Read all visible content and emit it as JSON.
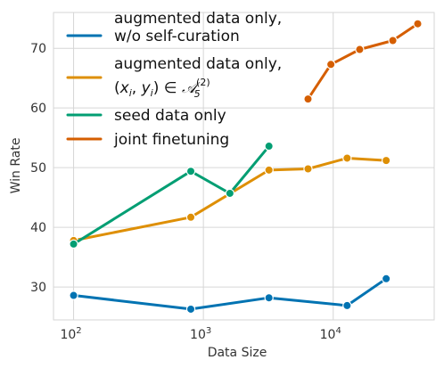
{
  "chart_data": {
    "type": "line",
    "xlabel": "Data Size",
    "ylabel": "Win Rate",
    "xscale": "log",
    "xlim": [
      70,
      60000
    ],
    "ylim": [
      24.5,
      76
    ],
    "x_ticks": [
      {
        "value": 100,
        "base": "10",
        "exp": "2"
      },
      {
        "value": 1000,
        "base": "10",
        "exp": "3"
      },
      {
        "value": 10000,
        "base": "10",
        "exp": "4"
      }
    ],
    "y_ticks": [
      30,
      40,
      50,
      60,
      70
    ],
    "grid": true,
    "legend_position": "top-left",
    "series": [
      {
        "name": "augmented data only,",
        "name_line2": "w/o self-curation",
        "color": "#0173b2",
        "x": [
          100,
          800,
          3200,
          12800,
          25600
        ],
        "y": [
          28.6,
          26.3,
          28.2,
          26.9,
          31.4
        ]
      },
      {
        "name": "augmented data only,",
        "name_line2_math": "(x_i, y_i) ∈ A_5^(2)",
        "color": "#de8f05",
        "x": [
          100,
          800,
          3200,
          6400,
          12800,
          25600
        ],
        "y": [
          37.8,
          41.7,
          49.6,
          49.8,
          51.6,
          51.2
        ]
      },
      {
        "name": "seed data only",
        "color": "#029e73",
        "x": [
          100,
          800,
          1600,
          3200
        ],
        "y": [
          37.2,
          49.4,
          45.7,
          53.6
        ]
      },
      {
        "name": "joint finetuning",
        "color": "#d55e00",
        "x": [
          6400,
          9600,
          16000,
          28800,
          44800
        ],
        "y": [
          61.5,
          67.3,
          69.8,
          71.3,
          74.1
        ]
      }
    ]
  }
}
